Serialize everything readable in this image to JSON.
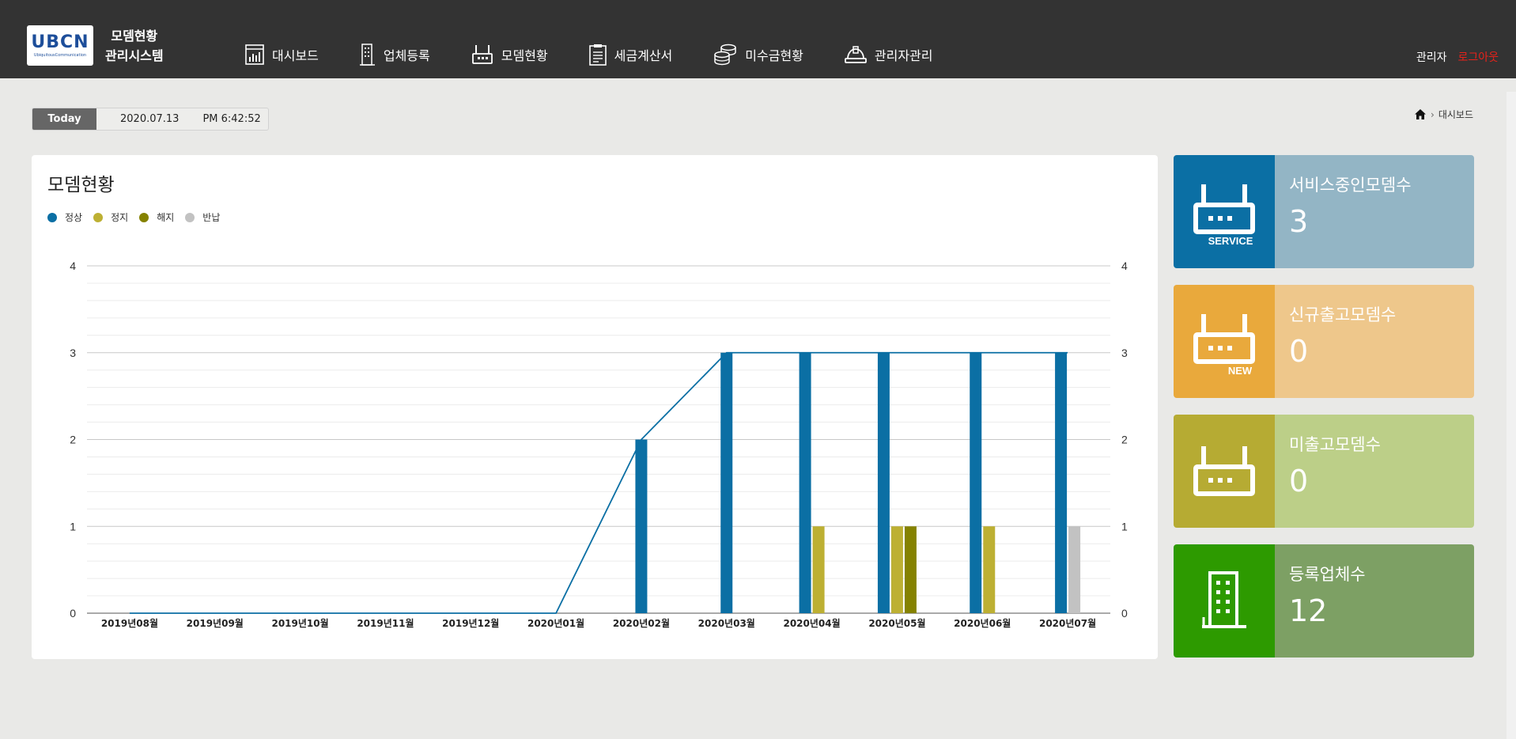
{
  "header": {
    "logo_text": "UBCN",
    "logo_subtext": "UbiquitousCommunication",
    "app_title_line1": "모뎀현황",
    "app_title_line2": "관리시스템",
    "nav": [
      {
        "label": "대시보드",
        "icon": "dashboard-icon"
      },
      {
        "label": "업체등록",
        "icon": "building-icon"
      },
      {
        "label": "모뎀현황",
        "icon": "router-icon"
      },
      {
        "label": "세금계산서",
        "icon": "clipboard-icon"
      },
      {
        "label": "미수금현황",
        "icon": "coins-icon"
      },
      {
        "label": "관리자관리",
        "icon": "helmet-icon"
      }
    ],
    "user_name": "관리자",
    "logout_label": "로그아웃"
  },
  "datebar": {
    "today_label": "Today",
    "date": "2020.07.13",
    "time": "PM 6:42:52"
  },
  "breadcrumb": {
    "current": "대시보드"
  },
  "chart_panel": {
    "title": "모뎀현황"
  },
  "chart_data": {
    "type": "bar",
    "title": "모뎀현황",
    "categories": [
      "2019년08월",
      "2019년09월",
      "2019년10월",
      "2019년11월",
      "2019년12월",
      "2020년01월",
      "2020년02월",
      "2020년03월",
      "2020년04월",
      "2020년05월",
      "2020년06월",
      "2020년07월"
    ],
    "ylim": [
      0,
      4
    ],
    "yticks": [
      0,
      1,
      2,
      3,
      4
    ],
    "legend_position": "top-left",
    "grid": true,
    "series": [
      {
        "name": "정상",
        "color": "#0b6fa4",
        "values": [
          0,
          0,
          0,
          0,
          0,
          0,
          2,
          3,
          3,
          3,
          3,
          3
        ]
      },
      {
        "name": "정지",
        "color": "#bdb033",
        "values": [
          0,
          0,
          0,
          0,
          0,
          0,
          0,
          0,
          1,
          1,
          1,
          0
        ]
      },
      {
        "name": "해지",
        "color": "#858200",
        "values": [
          0,
          0,
          0,
          0,
          0,
          0,
          0,
          0,
          0,
          1,
          0,
          0
        ]
      },
      {
        "name": "반납",
        "color": "#c2c2c2",
        "values": [
          0,
          0,
          0,
          0,
          0,
          0,
          0,
          0,
          0,
          0,
          0,
          1
        ]
      }
    ],
    "line": {
      "color": "#0b6fa4",
      "values": [
        0,
        0,
        0,
        0,
        0,
        0,
        2,
        3,
        3,
        3,
        3,
        3
      ]
    }
  },
  "cards": [
    {
      "label": "서비스중인모뎀수",
      "value": "3",
      "icon_tag": "SERVICE",
      "icon_color": "#0b6fa4",
      "body_color": "#93b5c5"
    },
    {
      "label": "신규출고모뎀수",
      "value": "0",
      "icon_tag": "NEW",
      "icon_color": "#e9a93c",
      "body_color": "#eec78b"
    },
    {
      "label": "미출고모뎀수",
      "value": "0",
      "icon_tag": "",
      "icon_color": "#b6ab33",
      "body_color": "#bccf88"
    },
    {
      "label": "등록업체수",
      "value": "12",
      "icon_tag": "",
      "icon_color": "#2d9a00",
      "body_color": "#7da064"
    }
  ]
}
